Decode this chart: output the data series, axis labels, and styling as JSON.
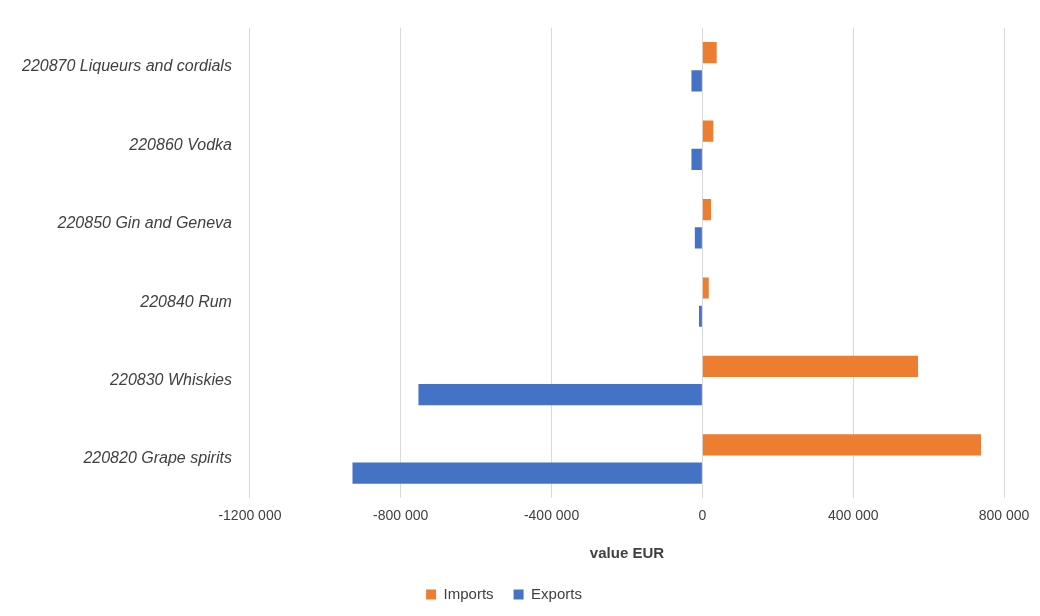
{
  "chart_data": {
    "type": "bar",
    "orientation": "horizontal",
    "categories": [
      "220870 Liqueurs and cordials",
      "220860 Vodka",
      "220850 Gin and Geneva",
      "220840 Rum",
      "220830 Whiskies",
      "220820 Grape spirits"
    ],
    "series": [
      {
        "name": "Imports",
        "color": "#ed7d31",
        "values": [
          38000,
          29000,
          23000,
          17000,
          572000,
          739000
        ]
      },
      {
        "name": "Exports",
        "color": "#4472c4",
        "values": [
          -29000,
          -29000,
          -20000,
          -9000,
          -753000,
          -928000
        ]
      }
    ],
    "xlabel": "value EUR",
    "xlim": [
      -1200000,
      800000
    ],
    "xticks": [
      {
        "value": -1200000,
        "label": "-1200 000"
      },
      {
        "value": -800000,
        "label": "-800 000"
      },
      {
        "value": -400000,
        "label": "-400 000"
      },
      0,
      {
        "value": 400000,
        "label": "400 000"
      },
      {
        "value": 800000,
        "label": "800 000"
      }
    ],
    "grid": "x",
    "legend": "bottom"
  }
}
